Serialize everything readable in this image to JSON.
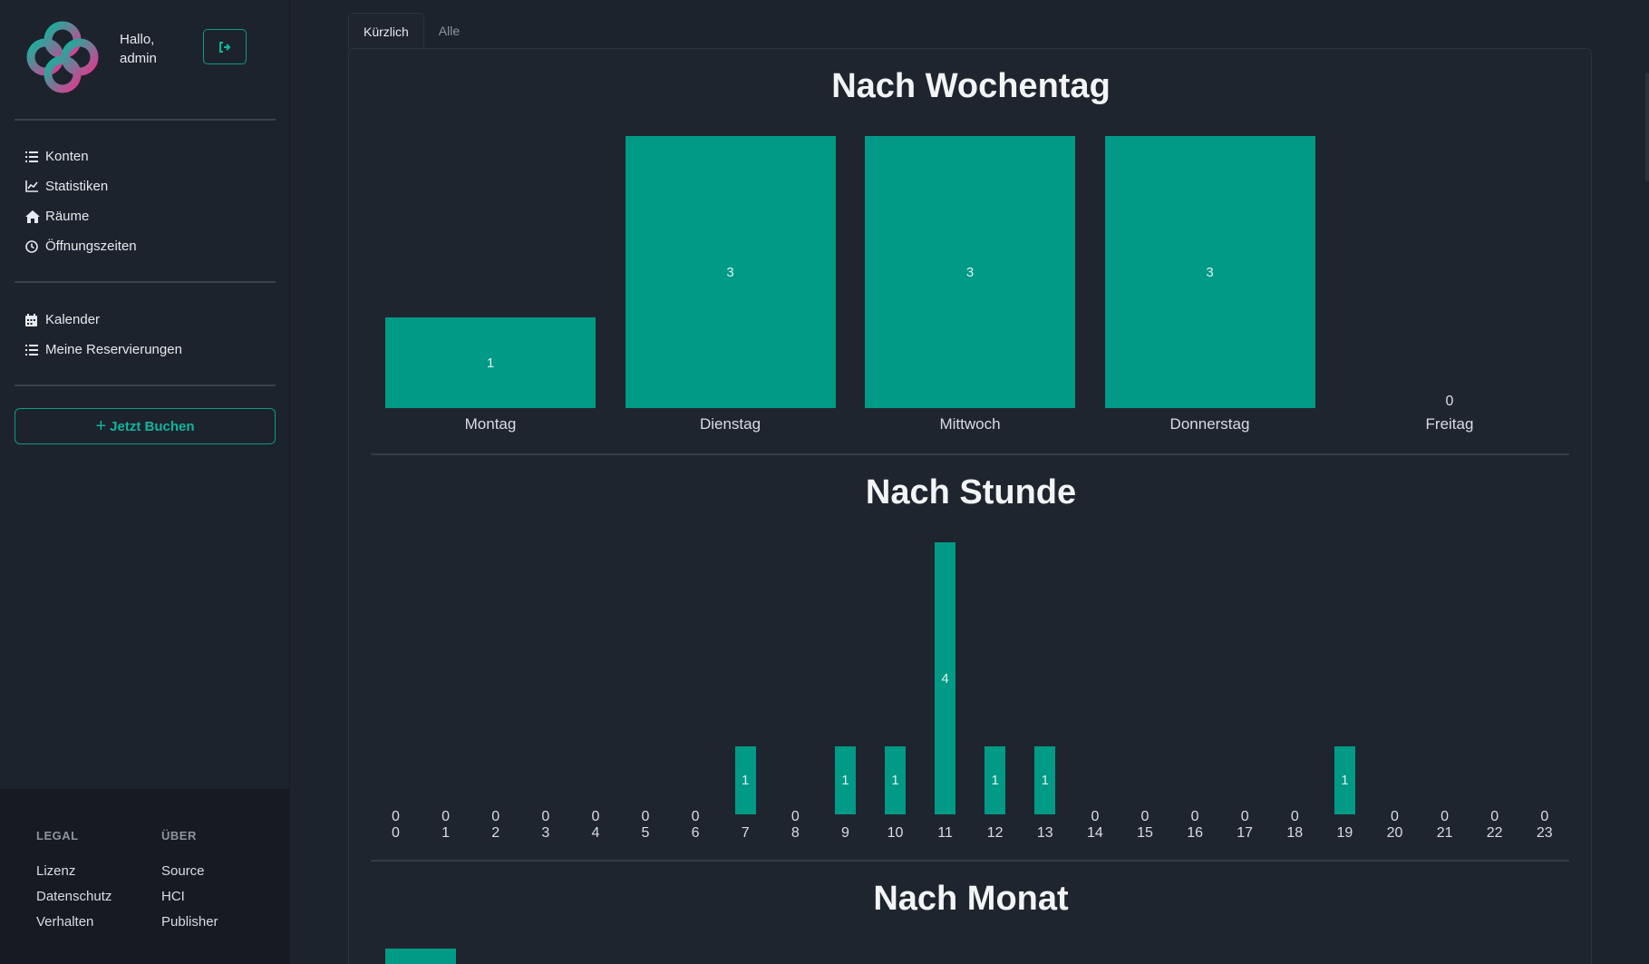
{
  "sidebar": {
    "greeting": "Hallo,",
    "username": "admin",
    "nav_primary": [
      {
        "label": "Konten",
        "icon": "list-icon"
      },
      {
        "label": "Statistiken",
        "icon": "chart-line-icon"
      },
      {
        "label": "Räume",
        "icon": "home-icon"
      },
      {
        "label": "Öffnungszeiten",
        "icon": "clock-icon"
      }
    ],
    "nav_secondary": [
      {
        "label": "Kalender",
        "icon": "calendar-icon"
      },
      {
        "label": "Meine Reservierungen",
        "icon": "list-icon"
      }
    ],
    "book_label": "Jetzt Buchen",
    "footer": {
      "legal_heading": "LEGAL",
      "legal_links": [
        "Lizenz",
        "Datenschutz",
        "Verhalten"
      ],
      "about_heading": "ÜBER",
      "about_links": [
        "Source",
        "HCI",
        "Publisher"
      ]
    }
  },
  "tabs": [
    "Kürzlich",
    "Alle"
  ],
  "colors": {
    "accent": "#009a86",
    "background": "#1d232c",
    "panel": "#1f252e"
  },
  "chart_data": [
    {
      "type": "bar",
      "title": "Nach Wochentag",
      "categories": [
        "Montag",
        "Dienstag",
        "Mittwoch",
        "Donnerstag",
        "Freitag"
      ],
      "values": [
        1,
        3,
        3,
        3,
        0
      ]
    },
    {
      "type": "bar",
      "title": "Nach Stunde",
      "categories": [
        "0",
        "1",
        "2",
        "3",
        "4",
        "5",
        "6",
        "7",
        "8",
        "9",
        "10",
        "11",
        "12",
        "13",
        "14",
        "15",
        "16",
        "17",
        "18",
        "19",
        "20",
        "21",
        "22",
        "23"
      ],
      "values": [
        0,
        0,
        0,
        0,
        0,
        0,
        0,
        1,
        0,
        1,
        1,
        4,
        1,
        1,
        0,
        0,
        0,
        0,
        0,
        1,
        0,
        0,
        0,
        0
      ]
    },
    {
      "type": "bar",
      "title": "Nach Monat"
    }
  ]
}
